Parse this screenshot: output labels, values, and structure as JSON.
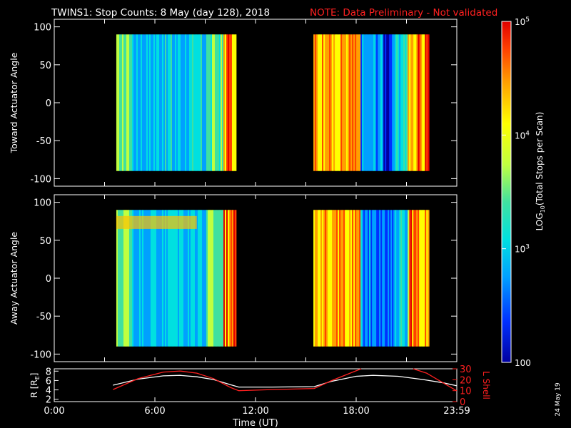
{
  "header": {
    "title": "TWINS1: Stop Counts:  8 May (day 128), 2018",
    "note": "NOTE: Data Preliminary - Not validated"
  },
  "chart_data": [
    {
      "type": "heatmap",
      "ylabel": "Toward Actuator Angle",
      "ylim": [
        -110,
        110
      ],
      "y_ticks": [
        "100",
        "50",
        "0",
        "-50",
        "-100"
      ],
      "y_tick_values": [
        100,
        50,
        0,
        -50,
        -100
      ],
      "angle_range": [
        -90,
        90
      ],
      "blocks_hours": [
        [
          3.7,
          10.85
        ],
        [
          15.45,
          22.35
        ]
      ]
    },
    {
      "type": "heatmap",
      "ylabel": "Away Actuator Angle",
      "ylim": [
        -110,
        110
      ],
      "y_ticks": [
        "100",
        "50",
        "0",
        "-50",
        "-100"
      ],
      "y_tick_values": [
        100,
        50,
        0,
        -50,
        -100
      ],
      "angle_range": [
        -90,
        90
      ],
      "blocks_hours": [
        [
          3.7,
          10.85
        ],
        [
          15.45,
          22.35
        ]
      ]
    },
    {
      "type": "line",
      "ylabel": "R [R",
      "ylabel_sub": "E",
      "ylabel_close": "]",
      "ylim": [
        1.5,
        8.5
      ],
      "y_ticks": [
        "8",
        "6",
        "4",
        "2"
      ],
      "y_tick_values": [
        8,
        6,
        4,
        2
      ],
      "y2label": "L Shell",
      "y2lim": [
        0,
        30
      ],
      "y2_ticks": [
        "30",
        "20",
        "10",
        "0"
      ],
      "y2_tick_values": [
        30,
        20,
        10,
        0
      ],
      "xlabel": "Time (UT)",
      "xlim_hours": [
        0,
        24
      ],
      "x_ticks": [
        "0:00",
        "6:00",
        "12:00",
        "18:00",
        "23:59"
      ],
      "x_tick_hours": [
        0,
        6,
        12,
        18,
        24
      ],
      "series": [
        {
          "color": "#ffffff",
          "x": [
            3.5,
            5,
            6.5,
            7.5,
            8.5,
            9.5,
            10.5,
            11,
            13,
            15.5,
            16.5,
            18,
            19,
            20.5,
            22,
            23.2,
            23.98
          ],
          "y": [
            5.0,
            6.3,
            7.0,
            7.1,
            6.8,
            6.2,
            5.1,
            4.6,
            4.6,
            4.7,
            5.8,
            6.9,
            7.1,
            6.9,
            6.2,
            5.5,
            4.9
          ]
        },
        {
          "color": "#ff2020",
          "axis": "right",
          "x": [
            3.5,
            5,
            6.5,
            7.5,
            8.5,
            9.5,
            10.5,
            11,
            13,
            15.5,
            16.5,
            17.8,
            18.3
          ],
          "y": [
            11,
            21,
            27,
            28,
            26,
            21,
            13,
            10,
            11,
            12,
            19,
            27,
            33
          ]
        },
        {
          "color": "#ff2020",
          "axis": "right",
          "x": [
            21.4,
            22.2,
            23.2,
            23.98
          ],
          "y": [
            33,
            26,
            17,
            10
          ]
        }
      ]
    }
  ],
  "colorbar": {
    "label_prefix": "LOG",
    "label_sub": "10",
    "label_rest": "(Total Stops per Scan)",
    "ticks": [
      {
        "base": "10",
        "exp": "5",
        "value": 100000
      },
      {
        "base": "10",
        "exp": "4",
        "value": 10000
      },
      {
        "base": "10",
        "exp": "3",
        "value": 1000
      },
      {
        "base": "100",
        "exp": "",
        "value": 100
      }
    ],
    "colors": [
      "#0000a0",
      "#0030ff",
      "#00a0ff",
      "#00e0e0",
      "#40e0a0",
      "#c0ff40",
      "#ffff00",
      "#ffa000",
      "#ff4000",
      "#e00000"
    ]
  },
  "footer": {
    "date_stamp": "24 May 19"
  }
}
